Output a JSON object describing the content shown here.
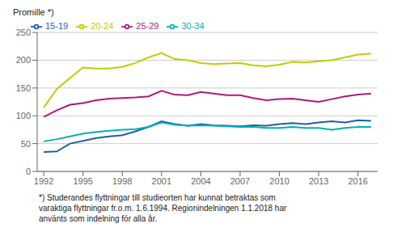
{
  "chart_data": {
    "type": "line",
    "ylabel": "Promille *)",
    "x": [
      1992,
      1993,
      1994,
      1995,
      1996,
      1997,
      1998,
      1999,
      2000,
      2001,
      2002,
      2003,
      2004,
      2005,
      2006,
      2007,
      2008,
      2009,
      2010,
      2011,
      2012,
      2013,
      2014,
      2015,
      2016,
      2017
    ],
    "series": [
      {
        "name": "15-19",
        "color": "#1f5fa6",
        "values": [
          35,
          36,
          50,
          55,
          60,
          63,
          65,
          72,
          80,
          90,
          85,
          82,
          85,
          83,
          82,
          81,
          83,
          82,
          85,
          87,
          85,
          88,
          90,
          88,
          92,
          91
        ]
      },
      {
        "name": "20-24",
        "color": "#bfce00",
        "values": [
          115,
          148,
          168,
          187,
          185,
          185,
          188,
          195,
          205,
          213,
          202,
          200,
          195,
          193,
          194,
          195,
          191,
          189,
          192,
          197,
          196,
          198,
          200,
          205,
          210,
          212
        ]
      },
      {
        "name": "25-29",
        "color": "#aa1a7e",
        "values": [
          98,
          110,
          120,
          123,
          128,
          131,
          132,
          133,
          135,
          145,
          138,
          137,
          143,
          140,
          137,
          137,
          132,
          128,
          130,
          131,
          128,
          125,
          130,
          135,
          138,
          140
        ]
      },
      {
        "name": "30-34",
        "color": "#00b0b9",
        "values": [
          54,
          58,
          63,
          68,
          71,
          73,
          75,
          76,
          80,
          88,
          84,
          82,
          83,
          82,
          81,
          80,
          80,
          78,
          78,
          80,
          78,
          78,
          75,
          78,
          80,
          80
        ]
      }
    ],
    "xlim": [
      1991.5,
      2017.5
    ],
    "xticks": [
      1992,
      1995,
      1998,
      2001,
      2004,
      2007,
      2010,
      2013,
      2016
    ],
    "ylim": [
      0,
      250
    ],
    "yticks": [
      0,
      50,
      100,
      150,
      200,
      250
    ],
    "grid": "y",
    "legend": "upper left",
    "annotations": [
      "*) Studerandes flyttningar till studieorten har kunnat betraktas som",
      "varaktiga flyttningar fr.o.m. 1.6.1994. Regionindelningen 1.1.2018 har",
      "använts som indelning för alla år."
    ]
  }
}
